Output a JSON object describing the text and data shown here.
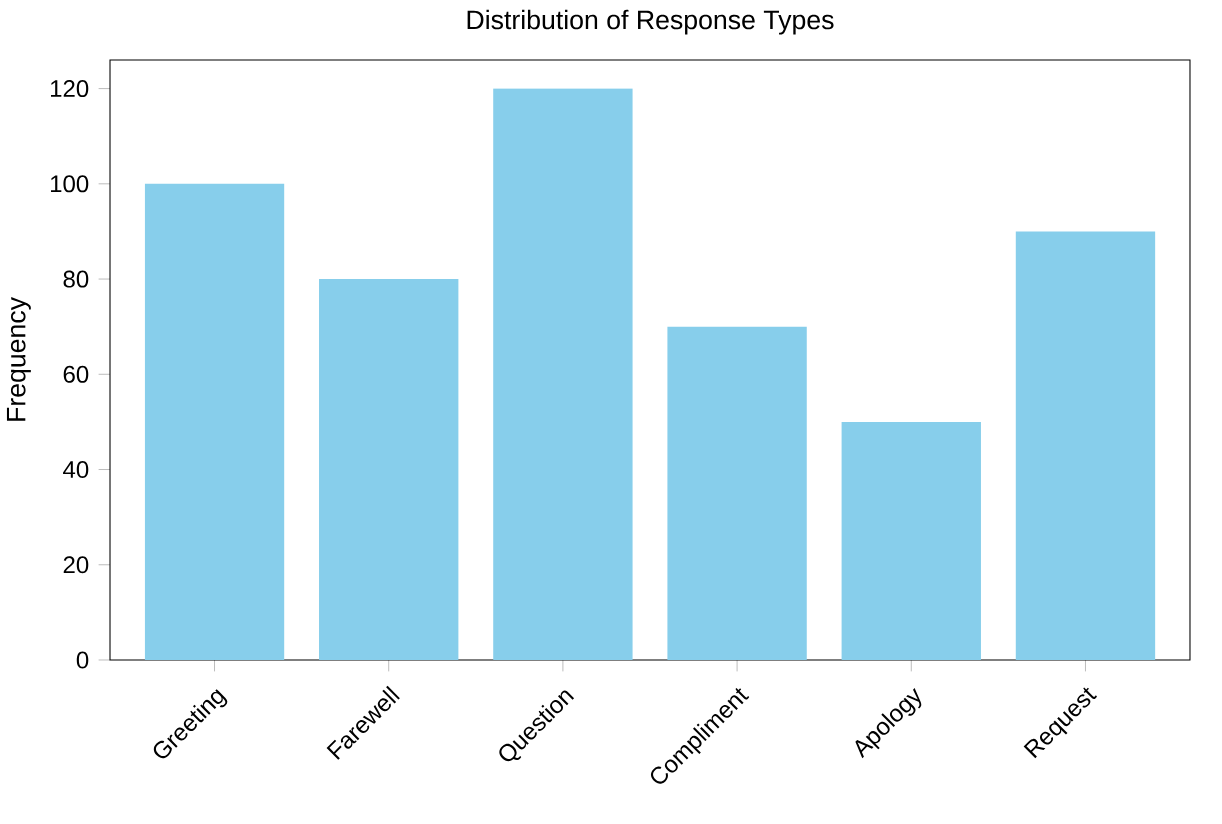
{
  "chart_data": {
    "type": "bar",
    "title": "Distribution of Response Types",
    "ylabel": "Frequency",
    "categories": [
      "Greeting",
      "Farewell",
      "Question",
      "Compliment",
      "Apology",
      "Request"
    ],
    "values": [
      100,
      80,
      120,
      70,
      50,
      90
    ],
    "color": "#87ceeb",
    "ylim": [
      0,
      126
    ],
    "yticks": [
      0,
      20,
      40,
      60,
      80,
      100,
      120
    ],
    "grid": false
  }
}
